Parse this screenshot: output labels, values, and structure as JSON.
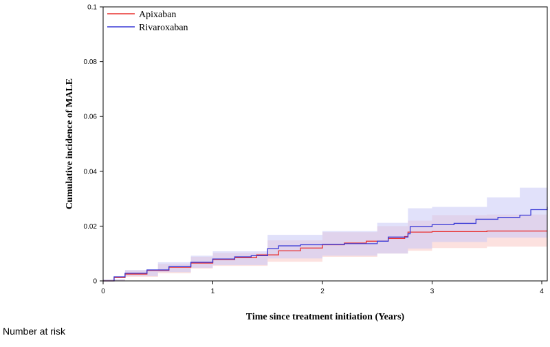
{
  "chart_data": {
    "type": "line",
    "xlabel": "Time since treatment initiation (Years)",
    "ylabel": "Cumulative incidence of MALE",
    "xlim": [
      0,
      4.05
    ],
    "ylim": [
      0,
      0.1
    ],
    "xticks": [
      0,
      1,
      2,
      3,
      4
    ],
    "yticks": [
      0,
      0.02,
      0.04,
      0.06,
      0.08,
      0.1
    ],
    "xtick_labels": [
      "0",
      "1",
      "2",
      "3",
      "4"
    ],
    "ytick_labels": [
      "0",
      "0.02",
      "0.04",
      "0.06",
      "0.08",
      "0.1"
    ],
    "grid": false,
    "legend_position": "top-left",
    "series": [
      {
        "name": "Apixaban",
        "color": "#e8302f",
        "band_color": "#f9c9c4",
        "points": [
          [
            0,
            0
          ],
          [
            0.1,
            0.0012
          ],
          [
            0.2,
            0.0025
          ],
          [
            0.4,
            0.0038
          ],
          [
            0.6,
            0.005
          ],
          [
            0.8,
            0.0065
          ],
          [
            1.0,
            0.0078
          ],
          [
            1.2,
            0.0085
          ],
          [
            1.4,
            0.0095
          ],
          [
            1.6,
            0.011
          ],
          [
            1.8,
            0.012
          ],
          [
            2.0,
            0.0132
          ],
          [
            2.2,
            0.0138
          ],
          [
            2.4,
            0.0145
          ],
          [
            2.6,
            0.0155
          ],
          [
            2.75,
            0.0162
          ],
          [
            2.78,
            0.0178
          ],
          [
            3.0,
            0.018
          ],
          [
            3.5,
            0.0182
          ],
          [
            4.05,
            0.0182
          ]
        ],
        "lower": [
          [
            0,
            0
          ],
          [
            0.2,
            0.0015
          ],
          [
            0.5,
            0.0028
          ],
          [
            0.8,
            0.0045
          ],
          [
            1.0,
            0.0055
          ],
          [
            1.5,
            0.007
          ],
          [
            2.0,
            0.0088
          ],
          [
            2.5,
            0.01
          ],
          [
            2.78,
            0.011
          ],
          [
            3.0,
            0.012
          ],
          [
            3.5,
            0.0125
          ],
          [
            4.05,
            0.0128
          ]
        ],
        "upper": [
          [
            0,
            0.0005
          ],
          [
            0.2,
            0.0038
          ],
          [
            0.5,
            0.0062
          ],
          [
            0.8,
            0.0088
          ],
          [
            1.0,
            0.0102
          ],
          [
            1.5,
            0.0148
          ],
          [
            2.0,
            0.0178
          ],
          [
            2.5,
            0.02
          ],
          [
            2.78,
            0.022
          ],
          [
            3.0,
            0.024
          ],
          [
            3.5,
            0.0242
          ],
          [
            4.05,
            0.0245
          ]
        ]
      },
      {
        "name": "Rivaroxaban",
        "color": "#3a3ad6",
        "band_color": "#c8c8f6",
        "points": [
          [
            0,
            0
          ],
          [
            0.1,
            0.0015
          ],
          [
            0.2,
            0.0028
          ],
          [
            0.4,
            0.004
          ],
          [
            0.6,
            0.0052
          ],
          [
            0.8,
            0.0068
          ],
          [
            1.0,
            0.008
          ],
          [
            1.2,
            0.0088
          ],
          [
            1.35,
            0.0092
          ],
          [
            1.5,
            0.0118
          ],
          [
            1.6,
            0.0128
          ],
          [
            1.8,
            0.0132
          ],
          [
            2.0,
            0.0133
          ],
          [
            2.2,
            0.0136
          ],
          [
            2.5,
            0.0145
          ],
          [
            2.6,
            0.016
          ],
          [
            2.78,
            0.0172
          ],
          [
            2.8,
            0.0198
          ],
          [
            3.0,
            0.0205
          ],
          [
            3.2,
            0.021
          ],
          [
            3.4,
            0.0225
          ],
          [
            3.6,
            0.0232
          ],
          [
            3.8,
            0.024
          ],
          [
            3.9,
            0.026
          ],
          [
            4.05,
            0.027
          ]
        ],
        "lower": [
          [
            0,
            0
          ],
          [
            0.2,
            0.0018
          ],
          [
            0.5,
            0.0032
          ],
          [
            0.8,
            0.0048
          ],
          [
            1.0,
            0.0058
          ],
          [
            1.5,
            0.0082
          ],
          [
            2.0,
            0.0092
          ],
          [
            2.5,
            0.01
          ],
          [
            2.78,
            0.0118
          ],
          [
            3.0,
            0.0142
          ],
          [
            3.5,
            0.0158
          ],
          [
            4.05,
            0.0182
          ]
        ],
        "upper": [
          [
            0,
            0.0006
          ],
          [
            0.2,
            0.004
          ],
          [
            0.5,
            0.0068
          ],
          [
            0.8,
            0.0092
          ],
          [
            1.0,
            0.0108
          ],
          [
            1.5,
            0.0168
          ],
          [
            2.0,
            0.0182
          ],
          [
            2.5,
            0.0212
          ],
          [
            2.78,
            0.0265
          ],
          [
            3.0,
            0.027
          ],
          [
            3.5,
            0.0305
          ],
          [
            3.8,
            0.034
          ],
          [
            4.05,
            0.036
          ]
        ]
      }
    ]
  },
  "footer": {
    "number_at_risk_label": "Number at risk"
  }
}
